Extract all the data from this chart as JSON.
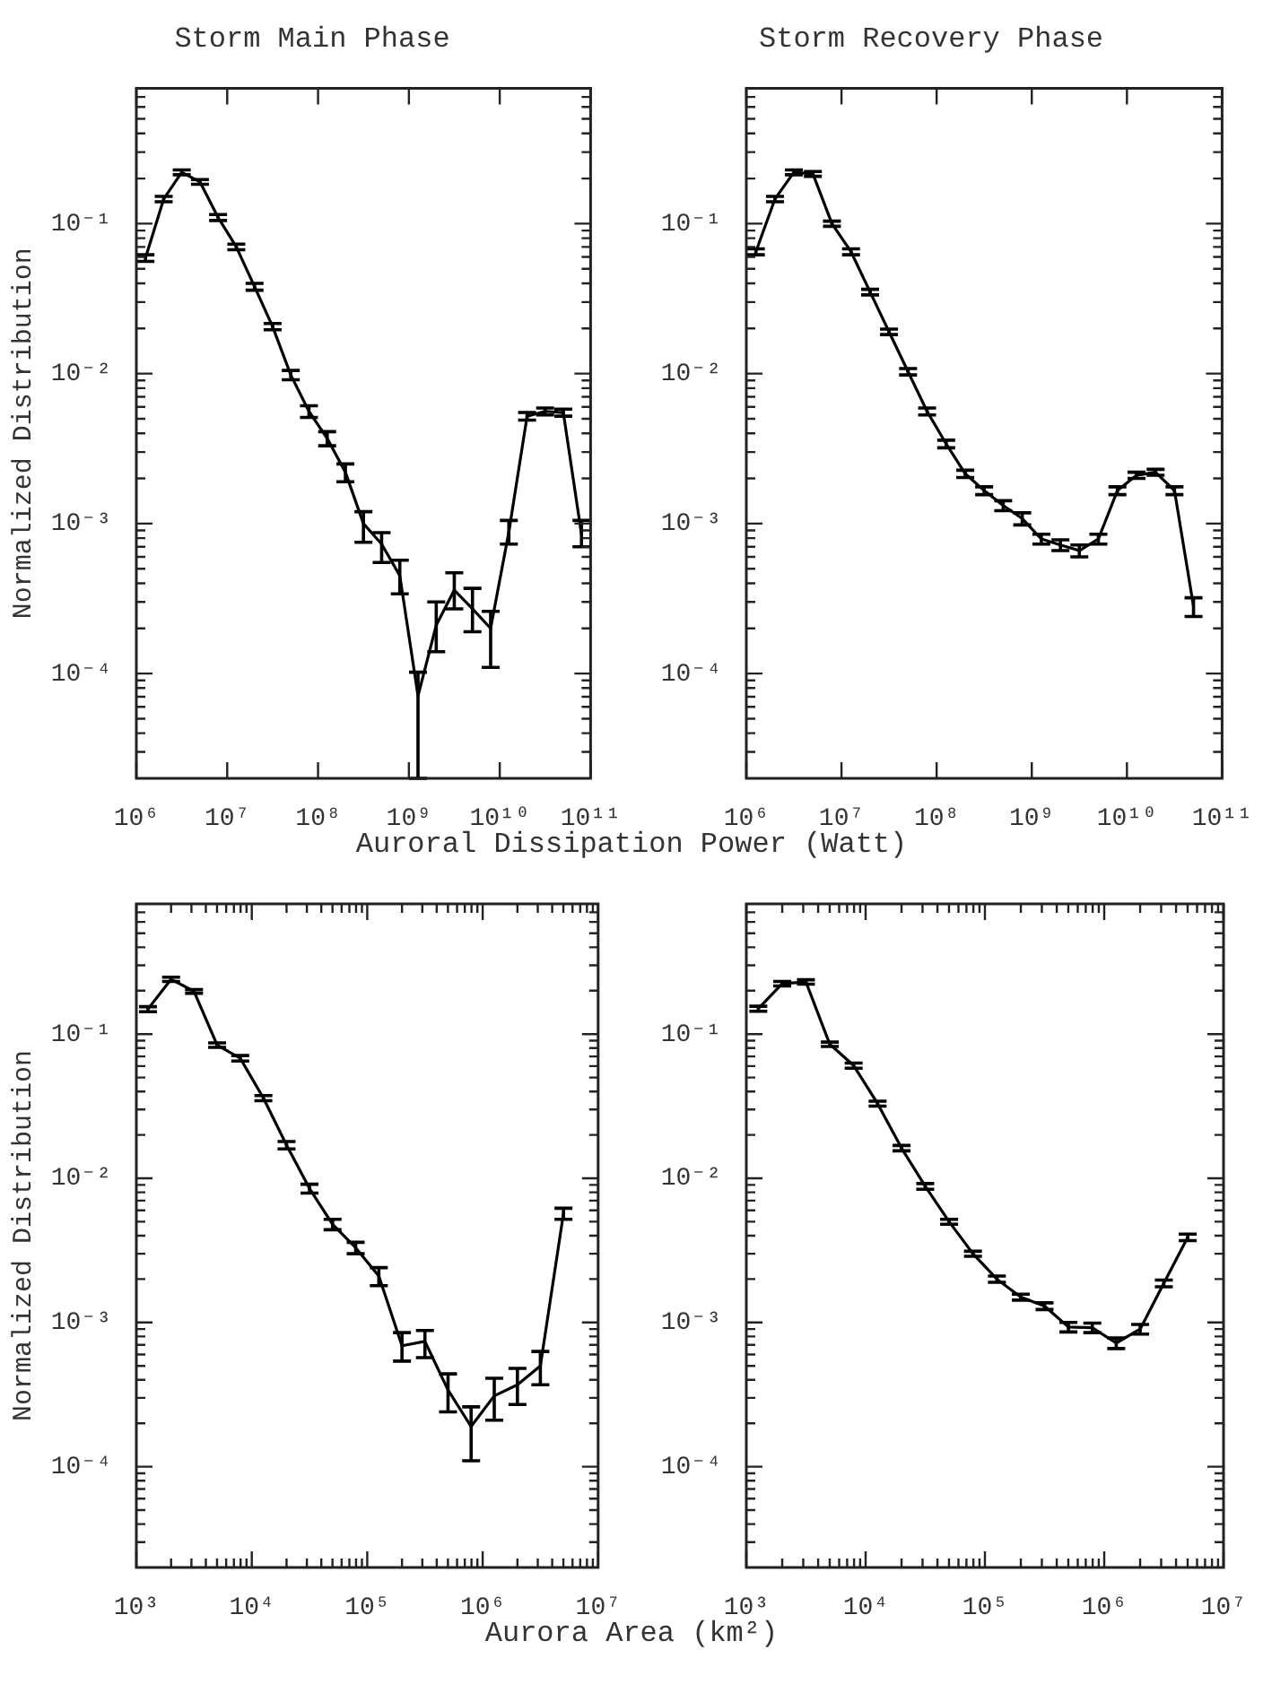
{
  "chart_data": [
    {
      "type": "line",
      "title": "Storm Main Phase",
      "ylabel": "Normalized Distribution",
      "xlabel": "Auroral Dissipation Power (Watt)",
      "log": "xy",
      "marker": "none",
      "x": [
        1260000.0,
        2000000.0,
        3160000.0,
        5010000.0,
        7940000.0,
        12600000.0,
        20000000.0,
        31600000.0,
        50100000.0,
        79400000.0,
        126000000.0,
        200000000.0,
        316000000.0,
        501000000.0,
        794000000.0,
        1260000000.0,
        2000000000.0,
        3160000000.0,
        5010000000.0,
        7940000000.0,
        12600000000.0,
        20000000000.0,
        31600000000.0,
        50100000000.0,
        79400000000.0
      ],
      "series": [
        {
          "color": "#000000",
          "values": [
            0.059,
            0.146,
            0.22,
            0.19,
            0.11,
            0.07,
            0.038,
            0.0206,
            0.0098,
            0.0056,
            0.0037,
            0.0022,
            0.001,
            0.00073,
            0.00045,
            7.1e-05,
            0.00021,
            0.00036,
            0.00027,
            0.0002,
            0.00088,
            0.0052,
            0.0056,
            0.0055,
            0.00085
          ],
          "errors": [
            0.003,
            0.006,
            0.008,
            0.007,
            0.005,
            0.003,
            0.002,
            0.001,
            0.0007,
            0.0005,
            0.0004,
            0.0003,
            [
              0.00075,
              0.0012
            ],
            [
              0.00055,
              0.00087
            ],
            [
              0.00034,
              0.00057
            ],
            [
              2e-05,
              0.000102
            ],
            [
              0.00014,
              0.0003
            ],
            [
              0.00027,
              0.00047
            ],
            [
              0.00019,
              0.00037
            ],
            [
              0.00011,
              0.00026
            ],
            [
              0.00073,
              0.00105
            ],
            0.0003,
            0.0003,
            0.0003,
            [
              0.0007,
              0.00105
            ]
          ]
        }
      ],
      "xlim": [
        1000000.0,
        100000000000.0
      ],
      "ylim": [
        2e-05,
        0.8
      ],
      "xticks": [
        {
          "value": 1000000.0,
          "label": "10⁶"
        },
        {
          "value": 10000000.0,
          "label": "10⁷"
        },
        {
          "value": 100000000.0,
          "label": "10⁸"
        },
        {
          "value": 1000000000.0,
          "label": "10⁹"
        },
        {
          "value": 10000000000.0,
          "label": "10¹⁰"
        },
        {
          "value": 100000000000.0,
          "label": "10¹¹"
        }
      ],
      "yticks": [
        {
          "value": 3e-05,
          "label": null
        },
        {
          "value": 4e-05,
          "label": null
        },
        {
          "value": 5e-05,
          "label": null
        },
        {
          "value": 6e-05,
          "label": null
        },
        {
          "value": 7e-05,
          "label": null
        },
        {
          "value": 8e-05,
          "label": null
        },
        {
          "value": 9e-05,
          "label": null
        },
        {
          "value": 0.0001,
          "label": "10⁻⁴"
        },
        {
          "value": 0.0002,
          "label": null
        },
        {
          "value": 0.0003,
          "label": null
        },
        {
          "value": 0.0004,
          "label": null
        },
        {
          "value": 0.0005,
          "label": null
        },
        {
          "value": 0.0006,
          "label": null
        },
        {
          "value": 0.0007,
          "label": null
        },
        {
          "value": 0.0008,
          "label": null
        },
        {
          "value": 0.0009,
          "label": null
        },
        {
          "value": 0.001,
          "label": "10⁻³"
        },
        {
          "value": 0.002,
          "label": null
        },
        {
          "value": 0.003,
          "label": null
        },
        {
          "value": 0.004,
          "label": null
        },
        {
          "value": 0.005,
          "label": null
        },
        {
          "value": 0.006,
          "label": null
        },
        {
          "value": 0.007,
          "label": null
        },
        {
          "value": 0.008,
          "label": null
        },
        {
          "value": 0.009,
          "label": null
        },
        {
          "value": 0.01,
          "label": "10⁻²"
        },
        {
          "value": 0.02,
          "label": null
        },
        {
          "value": 0.03,
          "label": null
        },
        {
          "value": 0.04,
          "label": null
        },
        {
          "value": 0.05,
          "label": null
        },
        {
          "value": 0.06,
          "label": null
        },
        {
          "value": 0.07,
          "label": null
        },
        {
          "value": 0.08,
          "label": null
        },
        {
          "value": 0.09,
          "label": null
        },
        {
          "value": 0.1,
          "label": "10⁻¹"
        },
        {
          "value": 0.2,
          "label": null
        },
        {
          "value": 0.3,
          "label": null
        },
        {
          "value": 0.4,
          "label": null
        },
        {
          "value": 0.5,
          "label": null
        },
        {
          "value": 0.6,
          "label": null
        },
        {
          "value": 0.7,
          "label": null
        }
      ]
    },
    {
      "type": "line",
      "title": "Storm Recovery Phase",
      "log": "xy",
      "marker": "none",
      "x": [
        1260000.0,
        2000000.0,
        3160000.0,
        5010000.0,
        7940000.0,
        12600000.0,
        20000000.0,
        31600000.0,
        50100000.0,
        79400000.0,
        126000000.0,
        200000000.0,
        316000000.0,
        501000000.0,
        794000000.0,
        1260000000.0,
        2000000000.0,
        3160000000.0,
        5010000000.0,
        7940000000.0,
        12600000000.0,
        20000000000.0,
        31600000000.0,
        50100000000.0
      ],
      "series": [
        {
          "color": "#000000",
          "values": [
            0.065,
            0.146,
            0.22,
            0.215,
            0.1,
            0.065,
            0.035,
            0.019,
            0.0103,
            0.0056,
            0.0034,
            0.00215,
            0.00166,
            0.00132,
            0.00108,
            0.00079,
            0.00072,
            0.00066,
            0.00079,
            0.00166,
            0.0021,
            0.0022,
            0.00166,
            0.00028
          ],
          "errors": [
            0.003,
            0.006,
            0.008,
            0.008,
            0.004,
            0.003,
            0.0015,
            0.0008,
            0.0005,
            0.0003,
            0.0002,
            0.00012,
            0.0001,
            0.0001,
            0.0001,
            6e-05,
            6e-05,
            6e-05,
            6e-05,
            0.0001,
            0.0001,
            0.0001,
            0.0001,
            4e-05
          ]
        }
      ],
      "xlim": [
        1000000.0,
        100000000000.0
      ],
      "ylim": [
        2e-05,
        0.8
      ],
      "xticks": [
        {
          "value": 1000000.0,
          "label": "10⁶"
        },
        {
          "value": 10000000.0,
          "label": "10⁷"
        },
        {
          "value": 100000000.0,
          "label": "10⁸"
        },
        {
          "value": 1000000000.0,
          "label": "10⁹"
        },
        {
          "value": 10000000000.0,
          "label": "10¹⁰"
        },
        {
          "value": 100000000000.0,
          "label": "10¹¹"
        }
      ],
      "yticks": [
        {
          "value": 3e-05,
          "label": null
        },
        {
          "value": 4e-05,
          "label": null
        },
        {
          "value": 5e-05,
          "label": null
        },
        {
          "value": 6e-05,
          "label": null
        },
        {
          "value": 7e-05,
          "label": null
        },
        {
          "value": 8e-05,
          "label": null
        },
        {
          "value": 9e-05,
          "label": null
        },
        {
          "value": 0.0001,
          "label": "10⁻⁴"
        },
        {
          "value": 0.0002,
          "label": null
        },
        {
          "value": 0.0003,
          "label": null
        },
        {
          "value": 0.0004,
          "label": null
        },
        {
          "value": 0.0005,
          "label": null
        },
        {
          "value": 0.0006,
          "label": null
        },
        {
          "value": 0.0007,
          "label": null
        },
        {
          "value": 0.0008,
          "label": null
        },
        {
          "value": 0.0009,
          "label": null
        },
        {
          "value": 0.001,
          "label": "10⁻³"
        },
        {
          "value": 0.002,
          "label": null
        },
        {
          "value": 0.003,
          "label": null
        },
        {
          "value": 0.004,
          "label": null
        },
        {
          "value": 0.005,
          "label": null
        },
        {
          "value": 0.006,
          "label": null
        },
        {
          "value": 0.007,
          "label": null
        },
        {
          "value": 0.008,
          "label": null
        },
        {
          "value": 0.009,
          "label": null
        },
        {
          "value": 0.01,
          "label": "10⁻²"
        },
        {
          "value": 0.02,
          "label": null
        },
        {
          "value": 0.03,
          "label": null
        },
        {
          "value": 0.04,
          "label": null
        },
        {
          "value": 0.05,
          "label": null
        },
        {
          "value": 0.06,
          "label": null
        },
        {
          "value": 0.07,
          "label": null
        },
        {
          "value": 0.08,
          "label": null
        },
        {
          "value": 0.09,
          "label": null
        },
        {
          "value": 0.1,
          "label": "10⁻¹"
        },
        {
          "value": 0.2,
          "label": null
        },
        {
          "value": 0.3,
          "label": null
        },
        {
          "value": 0.4,
          "label": null
        },
        {
          "value": 0.5,
          "label": null
        },
        {
          "value": 0.6,
          "label": null
        },
        {
          "value": 0.7,
          "label": null
        }
      ]
    },
    {
      "type": "line",
      "ylabel": "Normalized Distribution",
      "xlabel": "Aurora Area (km²)",
      "log": "xy",
      "marker": "none",
      "x": [
        1260.0,
        2000.0,
        3160.0,
        5010.0,
        7940.0,
        12600.0,
        20000.0,
        31600.0,
        50100.0,
        79400.0,
        126000.0,
        200000.0,
        316000.0,
        501000.0,
        794000.0,
        1260000.0,
        2000000.0,
        3160000.0,
        5010000.0
      ],
      "series": [
        {
          "color": "#000000",
          "values": [
            0.149,
            0.24,
            0.198,
            0.084,
            0.068,
            0.036,
            0.017,
            0.0085,
            0.0048,
            0.0033,
            0.0021,
            0.00069,
            0.00074,
            0.00034,
            0.00019,
            0.00031,
            0.00037,
            0.0005,
            0.0057
          ],
          "errors": [
            0.006,
            0.008,
            0.006,
            0.003,
            0.003,
            0.0015,
            0.001,
            0.0006,
            0.0004,
            0.0003,
            0.0003,
            [
              0.00054,
              0.00085
            ],
            [
              0.00057,
              0.00088
            ],
            [
              0.00024,
              0.00044
            ],
            [
              0.00011,
              0.00026
            ],
            [
              0.00021,
              0.00041
            ],
            [
              0.00027,
              0.00048
            ],
            [
              0.00037,
              0.00063
            ],
            0.0005
          ]
        }
      ],
      "xlim": [
        1000.0,
        10000000.0
      ],
      "ylim": [
        2e-05,
        0.8
      ],
      "xticks": [
        {
          "value": 1000.0,
          "label": "10³"
        },
        {
          "value": 2000.0,
          "label": null
        },
        {
          "value": 3000.0,
          "label": null
        },
        {
          "value": 4000.0,
          "label": null
        },
        {
          "value": 5000.0,
          "label": null
        },
        {
          "value": 6000.0,
          "label": null
        },
        {
          "value": 7000.0,
          "label": null
        },
        {
          "value": 8000.0,
          "label": null
        },
        {
          "value": 9000.0,
          "label": null
        },
        {
          "value": 10000.0,
          "label": "10⁴"
        },
        {
          "value": 20000.0,
          "label": null
        },
        {
          "value": 30000.0,
          "label": null
        },
        {
          "value": 40000.0,
          "label": null
        },
        {
          "value": 50000.0,
          "label": null
        },
        {
          "value": 60000.0,
          "label": null
        },
        {
          "value": 70000.0,
          "label": null
        },
        {
          "value": 80000.0,
          "label": null
        },
        {
          "value": 90000.0,
          "label": null
        },
        {
          "value": 100000.0,
          "label": "10⁵"
        },
        {
          "value": 200000.0,
          "label": null
        },
        {
          "value": 300000.0,
          "label": null
        },
        {
          "value": 400000.0,
          "label": null
        },
        {
          "value": 500000.0,
          "label": null
        },
        {
          "value": 600000.0,
          "label": null
        },
        {
          "value": 700000.0,
          "label": null
        },
        {
          "value": 800000.0,
          "label": null
        },
        {
          "value": 900000.0,
          "label": null
        },
        {
          "value": 1000000.0,
          "label": "10⁶"
        },
        {
          "value": 2000000.0,
          "label": null
        },
        {
          "value": 3000000.0,
          "label": null
        },
        {
          "value": 4000000.0,
          "label": null
        },
        {
          "value": 5000000.0,
          "label": null
        },
        {
          "value": 6000000.0,
          "label": null
        },
        {
          "value": 7000000.0,
          "label": null
        },
        {
          "value": 8000000.0,
          "label": null
        },
        {
          "value": 9000000.0,
          "label": null
        },
        {
          "value": 10000000.0,
          "label": "10⁷"
        }
      ],
      "yticks": [
        {
          "value": 3e-05,
          "label": null
        },
        {
          "value": 4e-05,
          "label": null
        },
        {
          "value": 5e-05,
          "label": null
        },
        {
          "value": 6e-05,
          "label": null
        },
        {
          "value": 7e-05,
          "label": null
        },
        {
          "value": 8e-05,
          "label": null
        },
        {
          "value": 9e-05,
          "label": null
        },
        {
          "value": 0.0001,
          "label": "10⁻⁴"
        },
        {
          "value": 0.0002,
          "label": null
        },
        {
          "value": 0.0003,
          "label": null
        },
        {
          "value": 0.0004,
          "label": null
        },
        {
          "value": 0.0005,
          "label": null
        },
        {
          "value": 0.0006,
          "label": null
        },
        {
          "value": 0.0007,
          "label": null
        },
        {
          "value": 0.0008,
          "label": null
        },
        {
          "value": 0.0009,
          "label": null
        },
        {
          "value": 0.001,
          "label": "10⁻³"
        },
        {
          "value": 0.002,
          "label": null
        },
        {
          "value": 0.003,
          "label": null
        },
        {
          "value": 0.004,
          "label": null
        },
        {
          "value": 0.005,
          "label": null
        },
        {
          "value": 0.006,
          "label": null
        },
        {
          "value": 0.007,
          "label": null
        },
        {
          "value": 0.008,
          "label": null
        },
        {
          "value": 0.009,
          "label": null
        },
        {
          "value": 0.01,
          "label": "10⁻²"
        },
        {
          "value": 0.02,
          "label": null
        },
        {
          "value": 0.03,
          "label": null
        },
        {
          "value": 0.04,
          "label": null
        },
        {
          "value": 0.05,
          "label": null
        },
        {
          "value": 0.06,
          "label": null
        },
        {
          "value": 0.07,
          "label": null
        },
        {
          "value": 0.08,
          "label": null
        },
        {
          "value": 0.09,
          "label": null
        },
        {
          "value": 0.1,
          "label": "10⁻¹"
        },
        {
          "value": 0.2,
          "label": null
        },
        {
          "value": 0.3,
          "label": null
        },
        {
          "value": 0.4,
          "label": null
        },
        {
          "value": 0.5,
          "label": null
        },
        {
          "value": 0.6,
          "label": null
        },
        {
          "value": 0.7,
          "label": null
        }
      ]
    },
    {
      "type": "line",
      "log": "xy",
      "marker": "none",
      "x": [
        1260.0,
        2000.0,
        3160.0,
        5010.0,
        7940.0,
        12600.0,
        20000.0,
        31600.0,
        50100.0,
        79400.0,
        126000.0,
        200000.0,
        316000.0,
        501000.0,
        794000.0,
        1260000.0,
        2000000.0,
        3160000.0,
        5010000.0
      ],
      "series": [
        {
          "color": "#000000",
          "values": [
            0.15,
            0.224,
            0.23,
            0.085,
            0.0605,
            0.033,
            0.0162,
            0.0088,
            0.005,
            0.003,
            0.002,
            0.0015,
            0.0013,
            0.00093,
            0.00092,
            0.00072,
            0.0009,
            0.00187,
            0.0039
          ],
          "errors": [
            0.006,
            0.008,
            0.008,
            0.003,
            0.0025,
            0.0013,
            0.0007,
            0.0004,
            0.0002,
            0.00012,
            0.0001,
            7e-05,
            7e-05,
            7e-05,
            7e-05,
            6e-05,
            7e-05,
            0.0001,
            0.0002
          ]
        }
      ],
      "xlim": [
        1000.0,
        10000000.0
      ],
      "ylim": [
        2e-05,
        0.8
      ],
      "xticks": [
        {
          "value": 1000.0,
          "label": "10³"
        },
        {
          "value": 2000.0,
          "label": null
        },
        {
          "value": 3000.0,
          "label": null
        },
        {
          "value": 4000.0,
          "label": null
        },
        {
          "value": 5000.0,
          "label": null
        },
        {
          "value": 6000.0,
          "label": null
        },
        {
          "value": 7000.0,
          "label": null
        },
        {
          "value": 8000.0,
          "label": null
        },
        {
          "value": 9000.0,
          "label": null
        },
        {
          "value": 10000.0,
          "label": "10⁴"
        },
        {
          "value": 20000.0,
          "label": null
        },
        {
          "value": 30000.0,
          "label": null
        },
        {
          "value": 40000.0,
          "label": null
        },
        {
          "value": 50000.0,
          "label": null
        },
        {
          "value": 60000.0,
          "label": null
        },
        {
          "value": 70000.0,
          "label": null
        },
        {
          "value": 80000.0,
          "label": null
        },
        {
          "value": 90000.0,
          "label": null
        },
        {
          "value": 100000.0,
          "label": "10⁵"
        },
        {
          "value": 200000.0,
          "label": null
        },
        {
          "value": 300000.0,
          "label": null
        },
        {
          "value": 400000.0,
          "label": null
        },
        {
          "value": 500000.0,
          "label": null
        },
        {
          "value": 600000.0,
          "label": null
        },
        {
          "value": 700000.0,
          "label": null
        },
        {
          "value": 800000.0,
          "label": null
        },
        {
          "value": 900000.0,
          "label": null
        },
        {
          "value": 1000000.0,
          "label": "10⁶"
        },
        {
          "value": 2000000.0,
          "label": null
        },
        {
          "value": 3000000.0,
          "label": null
        },
        {
          "value": 4000000.0,
          "label": null
        },
        {
          "value": 5000000.0,
          "label": null
        },
        {
          "value": 6000000.0,
          "label": null
        },
        {
          "value": 7000000.0,
          "label": null
        },
        {
          "value": 8000000.0,
          "label": null
        },
        {
          "value": 9000000.0,
          "label": null
        },
        {
          "value": 10000000.0,
          "label": "10⁷"
        }
      ],
      "yticks": [
        {
          "value": 3e-05,
          "label": null
        },
        {
          "value": 4e-05,
          "label": null
        },
        {
          "value": 5e-05,
          "label": null
        },
        {
          "value": 6e-05,
          "label": null
        },
        {
          "value": 7e-05,
          "label": null
        },
        {
          "value": 8e-05,
          "label": null
        },
        {
          "value": 9e-05,
          "label": null
        },
        {
          "value": 0.0001,
          "label": "10⁻⁴"
        },
        {
          "value": 0.0002,
          "label": null
        },
        {
          "value": 0.0003,
          "label": null
        },
        {
          "value": 0.0004,
          "label": null
        },
        {
          "value": 0.0005,
          "label": null
        },
        {
          "value": 0.0006,
          "label": null
        },
        {
          "value": 0.0007,
          "label": null
        },
        {
          "value": 0.0008,
          "label": null
        },
        {
          "value": 0.0009,
          "label": null
        },
        {
          "value": 0.001,
          "label": "10⁻³"
        },
        {
          "value": 0.002,
          "label": null
        },
        {
          "value": 0.003,
          "label": null
        },
        {
          "value": 0.004,
          "label": null
        },
        {
          "value": 0.005,
          "label": null
        },
        {
          "value": 0.006,
          "label": null
        },
        {
          "value": 0.007,
          "label": null
        },
        {
          "value": 0.008,
          "label": null
        },
        {
          "value": 0.009,
          "label": null
        },
        {
          "value": 0.01,
          "label": "10⁻²"
        },
        {
          "value": 0.02,
          "label": null
        },
        {
          "value": 0.03,
          "label": null
        },
        {
          "value": 0.04,
          "label": null
        },
        {
          "value": 0.05,
          "label": null
        },
        {
          "value": 0.06,
          "label": null
        },
        {
          "value": 0.07,
          "label": null
        },
        {
          "value": 0.08,
          "label": null
        },
        {
          "value": 0.09,
          "label": null
        },
        {
          "value": 0.1,
          "label": "10⁻¹"
        },
        {
          "value": 0.2,
          "label": null
        },
        {
          "value": 0.3,
          "label": null
        },
        {
          "value": 0.4,
          "label": null
        },
        {
          "value": 0.5,
          "label": null
        },
        {
          "value": 0.6,
          "label": null
        },
        {
          "value": 0.7,
          "label": null
        }
      ]
    }
  ]
}
